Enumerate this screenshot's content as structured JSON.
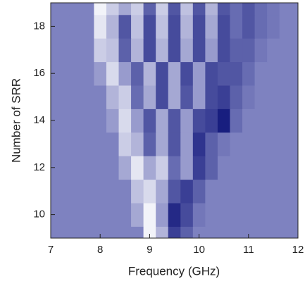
{
  "chart_data": {
    "type": "heatmap",
    "x_label": "Frequency (GHz)",
    "y_label": "Number of SRR",
    "xlim": [
      7,
      12
    ],
    "xticks": [
      7,
      8,
      9,
      10,
      11,
      12
    ],
    "ylim": [
      9,
      19
    ],
    "yticks": [
      10,
      12,
      14,
      16,
      18
    ],
    "x": [
      7,
      7.25,
      7.5,
      7.75,
      8,
      8.25,
      8.5,
      8.75,
      9,
      9.25,
      9.5,
      9.75,
      10,
      10.25,
      10.5,
      10.75,
      11,
      11.25,
      11.5,
      11.75,
      12
    ],
    "y": [
      9,
      10,
      11,
      12,
      13,
      14,
      15,
      16,
      17,
      18,
      19
    ],
    "zlim": [
      -1,
      1
    ],
    "colors": [
      "#ffffff",
      "#7e82c0",
      "#0d1378"
    ],
    "z": [
      [
        0,
        0,
        0,
        0,
        0,
        0,
        0,
        0,
        -0.9,
        -0.4,
        0.6,
        0.3,
        0,
        0,
        0,
        0,
        0,
        0,
        0,
        0,
        0
      ],
      [
        0,
        0,
        0,
        0,
        0,
        0,
        0,
        -0.3,
        -0.9,
        -0.2,
        0.8,
        0.5,
        0.1,
        0,
        0,
        0,
        0,
        0,
        0,
        0,
        0
      ],
      [
        0,
        0,
        0,
        0,
        0,
        0,
        0,
        -0.5,
        -0.7,
        -0.3,
        0.4,
        0.6,
        0.3,
        0,
        0,
        0,
        0,
        0,
        0,
        0,
        0
      ],
      [
        0,
        0,
        0,
        0,
        0,
        0,
        -0.3,
        -0.8,
        -0.3,
        -0.6,
        0.2,
        -0.2,
        0.6,
        0.3,
        0,
        0,
        0,
        0,
        0,
        0,
        0
      ],
      [
        0,
        0,
        0,
        0,
        0,
        0,
        -0.6,
        -0.4,
        0.3,
        -0.3,
        0.4,
        -0.2,
        0.7,
        0.3,
        0.1,
        0,
        0,
        0,
        0,
        0,
        0
      ],
      [
        0,
        0,
        0,
        0,
        0,
        -0.2,
        -0.7,
        -0.2,
        0.4,
        -0.3,
        0.4,
        -0.2,
        0.5,
        0.6,
        0.9,
        0.2,
        0,
        0,
        0,
        0,
        0
      ],
      [
        0,
        0,
        0,
        0,
        0,
        -0.4,
        -0.6,
        0.2,
        -0.3,
        0.5,
        -0.3,
        0.4,
        -0.2,
        0.5,
        0.6,
        0.3,
        0.1,
        0,
        0,
        0,
        0
      ],
      [
        0,
        0,
        0,
        0,
        -0.2,
        -0.7,
        -0.2,
        0.3,
        -0.4,
        0.5,
        -0.3,
        0.5,
        -0.2,
        0.5,
        0.4,
        0.4,
        0.2,
        0,
        0,
        0,
        0
      ],
      [
        0,
        0,
        0,
        0,
        -0.6,
        -0.5,
        0.3,
        -0.4,
        0.5,
        -0.4,
        0.5,
        -0.3,
        0.5,
        -0.2,
        0.5,
        0.3,
        0.3,
        0.1,
        0,
        0,
        0
      ],
      [
        0,
        0,
        0,
        0,
        -0.8,
        -0.4,
        0.4,
        -0.5,
        0.5,
        -0.5,
        0.5,
        -0.4,
        0.5,
        -0.3,
        0.5,
        0.2,
        0.4,
        0.2,
        0.1,
        0,
        0
      ],
      [
        0,
        0,
        0,
        0,
        -0.9,
        -0.6,
        -0.3,
        -0.6,
        0.3,
        -0.6,
        0.4,
        -0.5,
        0.4,
        -0.4,
        0.4,
        0.2,
        0.4,
        0.2,
        0.1,
        0,
        0
      ]
    ]
  }
}
